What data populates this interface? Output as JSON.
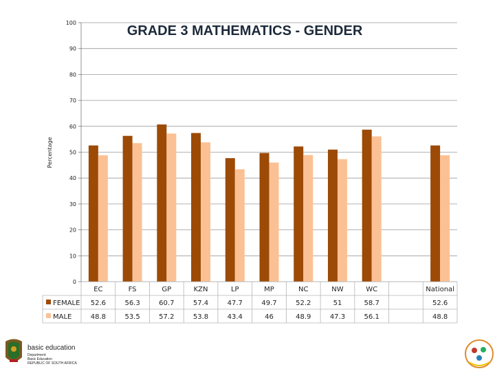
{
  "chart_data": {
    "type": "bar",
    "title": "GRADE 3 MATHEMATICS - GENDER",
    "ylabel": "Percentage",
    "xlabel": "",
    "ylim": [
      0,
      100
    ],
    "yticks": [
      0,
      10,
      20,
      30,
      40,
      50,
      60,
      70,
      80,
      90,
      100
    ],
    "grid": true,
    "categories": [
      "EC",
      "FS",
      "GP",
      "KZN",
      "LP",
      "MP",
      "NC",
      "NW",
      "WC",
      "",
      "National"
    ],
    "series": [
      {
        "name": "FEMALE",
        "color": "#9c4a06",
        "values": [
          52.6,
          56.3,
          60.7,
          57.4,
          47.7,
          49.7,
          52.2,
          51,
          58.7,
          null,
          52.6
        ],
        "labels": [
          "52.6",
          "56.3",
          "60.7",
          "57.4",
          "47.7",
          "49.7",
          "52.2",
          "51",
          "58.7",
          "",
          "52.6"
        ]
      },
      {
        "name": "MALE",
        "color": "#fbc194",
        "values": [
          48.8,
          53.5,
          57.2,
          53.8,
          43.4,
          46,
          48.9,
          47.3,
          56.1,
          null,
          48.8
        ],
        "labels": [
          "48.8",
          "53.5",
          "57.2",
          "53.8",
          "43.4",
          "46",
          "48.9",
          "47.3",
          "56.1",
          "",
          "48.8"
        ]
      }
    ],
    "legend": "data-table-left"
  },
  "footer": {
    "logo_lines": [
      "basic education",
      "Department:",
      "Basic Education",
      "REPUBLIC OF SOUTH AFRICA"
    ]
  }
}
